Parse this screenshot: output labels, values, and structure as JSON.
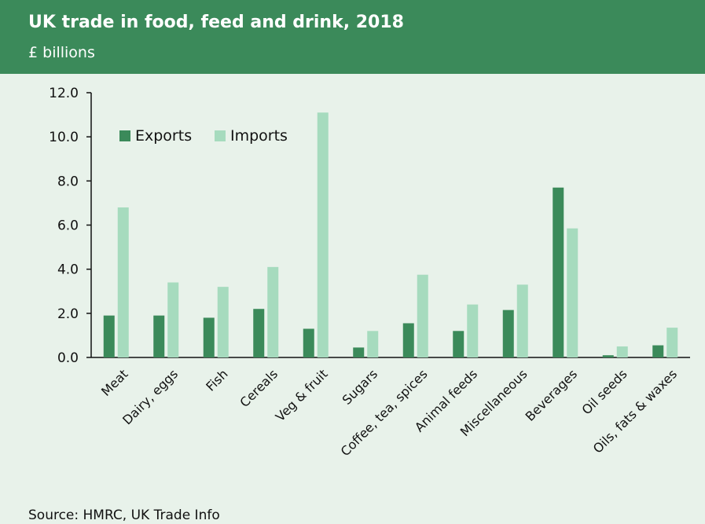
{
  "header": {
    "title": "UK trade in food, feed and drink, 2018",
    "subtitle": "£ billions"
  },
  "source": "Source: HMRC, UK Trade Info",
  "colors": {
    "header_bg": "#3b8a5a",
    "background": "#e8f2ea",
    "exports": "#3b8a5a",
    "imports": "#a6dbbe"
  },
  "chart_data": {
    "type": "bar",
    "title": "UK trade in food, feed and drink, 2018",
    "subtitle": "£ billions",
    "ylim": [
      0,
      12
    ],
    "yticks": [
      "0.0",
      "2.0",
      "4.0",
      "6.0",
      "8.0",
      "10.0",
      "12.0"
    ],
    "categories": [
      "Meat",
      "Dairy, eggs",
      "Fish",
      "Cereals",
      "Veg & fruit",
      "Sugars",
      "Coffee, tea, spices",
      "Animal feeds",
      "Miscellaneous",
      "Beverages",
      "Oil seeds",
      "Oils, fats & waxes"
    ],
    "series": [
      {
        "name": "Exports",
        "color": "#3b8a5a",
        "values": [
          1.9,
          1.9,
          1.8,
          2.2,
          1.3,
          0.45,
          1.55,
          1.2,
          2.15,
          7.7,
          0.1,
          0.55
        ]
      },
      {
        "name": "Imports",
        "color": "#a6dbbe",
        "values": [
          6.8,
          3.4,
          3.2,
          4.1,
          11.1,
          1.2,
          3.75,
          2.4,
          3.3,
          5.85,
          0.5,
          1.35
        ]
      }
    ],
    "legend_position": "top-left",
    "grid": false
  }
}
